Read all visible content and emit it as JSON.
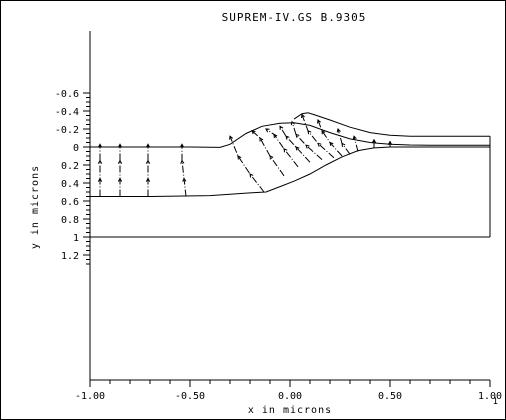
{
  "chart_data": {
    "type": "line",
    "title": "SUPREM-IV.GS B.9305",
    "xlabel": "x in microns",
    "ylabel": "y in microns",
    "xlim": [
      -1.0,
      1.0
    ],
    "ylim": [
      -0.65,
      1.3
    ],
    "y_axis_inverted": true,
    "grid": false,
    "legend": "none",
    "x_ticks": [
      {
        "value": -1.0,
        "label": "-1.00"
      },
      {
        "value": -0.5,
        "label": "-0.50"
      },
      {
        "value": 0.0,
        "label": "0.00"
      },
      {
        "value": 0.5,
        "label": "0.50"
      },
      {
        "value": 1.0,
        "label": "1.00"
      }
    ],
    "y_ticks": [
      {
        "value": -0.6,
        "label": "-0.6"
      },
      {
        "value": -0.4,
        "label": "-0.4"
      },
      {
        "value": -0.2,
        "label": "-0.2"
      },
      {
        "value": 0.0,
        "label": "0"
      },
      {
        "value": 0.2,
        "label": "0.2"
      },
      {
        "value": 0.4,
        "label": "0.4"
      },
      {
        "value": 0.6,
        "label": "0.6"
      },
      {
        "value": 0.8,
        "label": "0.8"
      },
      {
        "value": 1.0,
        "label": "1"
      },
      {
        "value": 1.2,
        "label": "1.2"
      }
    ],
    "series": [
      {
        "style": "solid",
        "x": [
          -1.0,
          -0.5,
          -0.35,
          -0.3,
          -0.22,
          -0.14,
          -0.05,
          0.02,
          0.1,
          0.2,
          0.3,
          0.4,
          0.5,
          0.6,
          0.7,
          1.0
        ],
        "y": [
          0.0,
          0.0,
          0.005,
          -0.03,
          -0.15,
          -0.23,
          -0.265,
          -0.27,
          -0.24,
          -0.16,
          -0.09,
          -0.05,
          -0.03,
          -0.022,
          -0.02,
          -0.02
        ]
      },
      {
        "style": "solid",
        "x": [
          0.02,
          0.06,
          0.09,
          0.12,
          0.2,
          0.3,
          0.4,
          0.5,
          0.6,
          0.7,
          1.0
        ],
        "y": [
          -0.31,
          -0.37,
          -0.38,
          -0.36,
          -0.3,
          -0.22,
          -0.16,
          -0.13,
          -0.12,
          -0.12,
          -0.12
        ]
      },
      {
        "style": "solid",
        "x": [
          -1.0,
          -0.7,
          -0.4,
          -0.2,
          -0.12,
          -0.05,
          0.02,
          0.1,
          0.18,
          0.26,
          0.34,
          0.42,
          0.5,
          0.6,
          0.7,
          1.0
        ],
        "y": [
          0.55,
          0.55,
          0.54,
          0.51,
          0.5,
          0.44,
          0.38,
          0.3,
          0.2,
          0.11,
          0.04,
          0.01,
          0.0,
          0.0,
          0.0,
          0.0
        ]
      },
      {
        "style": "solid",
        "x": [
          -1.0,
          1.0
        ],
        "y": [
          1.0,
          1.0
        ]
      },
      {
        "style": "solid",
        "x": [
          1.0,
          1.0
        ],
        "y": [
          -0.12,
          1.0
        ]
      }
    ],
    "vectors": [
      {
        "x": [
          -0.95,
          -0.95,
          -0.95,
          -0.95
        ],
        "y": [
          0.55,
          0.35,
          0.15,
          -0.03
        ]
      },
      {
        "x": [
          -0.85,
          -0.85,
          -0.85,
          -0.85
        ],
        "y": [
          0.55,
          0.35,
          0.15,
          -0.03
        ]
      },
      {
        "x": [
          -0.71,
          -0.71,
          -0.71,
          -0.71
        ],
        "y": [
          0.55,
          0.35,
          0.15,
          -0.03
        ]
      },
      {
        "x": [
          -0.52,
          -0.53,
          -0.54,
          -0.54
        ],
        "y": [
          0.55,
          0.35,
          0.15,
          -0.03
        ]
      },
      {
        "x": [
          -0.13,
          -0.2,
          -0.26,
          -0.3
        ],
        "y": [
          0.5,
          0.3,
          0.1,
          -0.12
        ]
      },
      {
        "x": [
          -0.03,
          -0.1,
          -0.15,
          -0.19
        ],
        "y": [
          0.32,
          0.1,
          -0.1,
          -0.18
        ]
      },
      {
        "x": [
          0.04,
          -0.03,
          -0.08,
          -0.12
        ],
        "y": [
          0.22,
          0.02,
          -0.14,
          -0.2
        ]
      },
      {
        "x": [
          0.1,
          0.03,
          -0.02,
          -0.05
        ],
        "y": [
          0.17,
          0.0,
          -0.12,
          -0.23
        ]
      },
      {
        "x": [
          0.16,
          0.08,
          0.03,
          0.01
        ],
        "y": [
          0.14,
          -0.02,
          -0.14,
          -0.28
        ]
      },
      {
        "x": [
          0.22,
          0.14,
          0.09,
          0.06
        ],
        "y": [
          0.12,
          -0.04,
          -0.18,
          -0.36
        ]
      },
      {
        "x": [
          0.26,
          0.2,
          0.16,
          0.14
        ],
        "y": [
          0.1,
          -0.05,
          -0.18,
          -0.3
        ]
      },
      {
        "x": [
          0.3,
          0.26,
          0.24
        ],
        "y": [
          0.08,
          -0.04,
          -0.2
        ]
      },
      {
        "x": [
          0.34,
          0.32
        ],
        "y": [
          0.05,
          -0.12
        ]
      },
      {
        "x": [
          0.42,
          0.42
        ],
        "y": [
          0.01,
          -0.08
        ]
      },
      {
        "x": [
          0.5,
          0.5
        ],
        "y": [
          0.0,
          -0.06
        ]
      }
    ]
  },
  "page_number": "1"
}
